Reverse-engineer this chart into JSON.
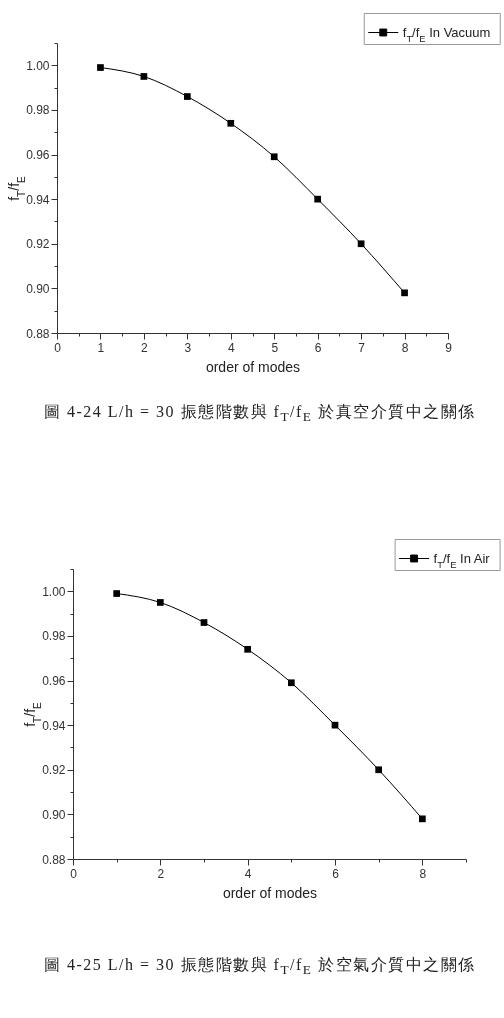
{
  "chart_data": [
    {
      "type": "line",
      "xlabel": "order of modes",
      "ylabel": "f$_{T}$/f$_{E}$",
      "x": [
        1,
        2,
        3,
        4,
        5,
        6,
        7,
        8
      ],
      "series": [
        {
          "name": "f$_{T}$/f$_{E}$ In Vacuum",
          "color": "#000000",
          "values": [
            0.999,
            0.995,
            0.986,
            0.974,
            0.959,
            0.94,
            0.92,
            0.898
          ]
        }
      ],
      "xlim": [
        0,
        9
      ],
      "xticks": [
        0,
        {
          "value": 0.5,
          "label": null
        },
        1,
        {
          "value": 1.5,
          "label": null
        },
        2,
        {
          "value": 2.5,
          "label": null
        },
        3,
        {
          "value": 3.5,
          "label": null
        },
        4,
        {
          "value": 4.5,
          "label": null
        },
        5,
        {
          "value": 5.5,
          "label": null
        },
        6,
        {
          "value": 6.5,
          "label": null
        },
        7,
        {
          "value": 7.5,
          "label": null
        },
        8,
        {
          "value": 8.5,
          "label": null
        },
        9
      ],
      "ylim": [
        0.88,
        1.01
      ],
      "yticks": [
        0.88,
        {
          "value": 0.89,
          "label": null
        },
        {
          "value": 0.9,
          "label": "0.90"
        },
        {
          "value": 0.91,
          "label": null
        },
        0.92,
        {
          "value": 0.93,
          "label": null
        },
        0.94,
        {
          "value": 0.95,
          "label": null
        },
        0.96,
        {
          "value": 0.97,
          "label": null
        },
        0.98,
        {
          "value": 0.99,
          "label": null
        },
        {
          "value": 1,
          "label": "1.00"
        },
        {
          "value": 1.01,
          "label": null
        }
      ],
      "legend": "top right",
      "marker": "square",
      "line_style": "solid",
      "annotations": [
        "圖 4-24 L/h = 30 振態階數與 f$_{T}$/f$_{E}$ 於真空介質中之關係"
      ]
    },
    {
      "type": "line",
      "xlabel": "order of modes",
      "ylabel": "f$_{T}$/f$_{E}$",
      "x": [
        1,
        2,
        3,
        4,
        5,
        6,
        7,
        8
      ],
      "series": [
        {
          "name": "f$_{T}$/f$_{E}$ In Air",
          "color": "#000000",
          "values": [
            0.999,
            0.995,
            0.986,
            0.974,
            0.959,
            0.94,
            0.92,
            0.898
          ]
        }
      ],
      "xlim": [
        0,
        9
      ],
      "xticks": [
        0,
        {
          "value": 1,
          "label": null
        },
        2,
        {
          "value": 3,
          "label": null
        },
        4,
        {
          "value": 5,
          "label": null
        },
        6,
        {
          "value": 7,
          "label": null
        },
        8,
        {
          "value": 9,
          "label": null
        }
      ],
      "ylim": [
        0.88,
        1.01
      ],
      "yticks": [
        0.88,
        {
          "value": 0.89,
          "label": null
        },
        {
          "value": 0.9,
          "label": "0.90"
        },
        {
          "value": 0.91,
          "label": null
        },
        0.92,
        {
          "value": 0.93,
          "label": null
        },
        0.94,
        {
          "value": 0.95,
          "label": null
        },
        0.96,
        {
          "value": 0.97,
          "label": null
        },
        0.98,
        {
          "value": 0.99,
          "label": null
        },
        {
          "value": 1,
          "label": "1.00"
        },
        {
          "value": 1.01,
          "label": null
        }
      ],
      "legend": "top right",
      "marker": "square",
      "line_style": "solid",
      "annotations": [
        "圖 4-25 L/h = 30 振態階數與 f$_{T}$/f$_{E}$ 於空氣介質中之關係"
      ]
    }
  ]
}
